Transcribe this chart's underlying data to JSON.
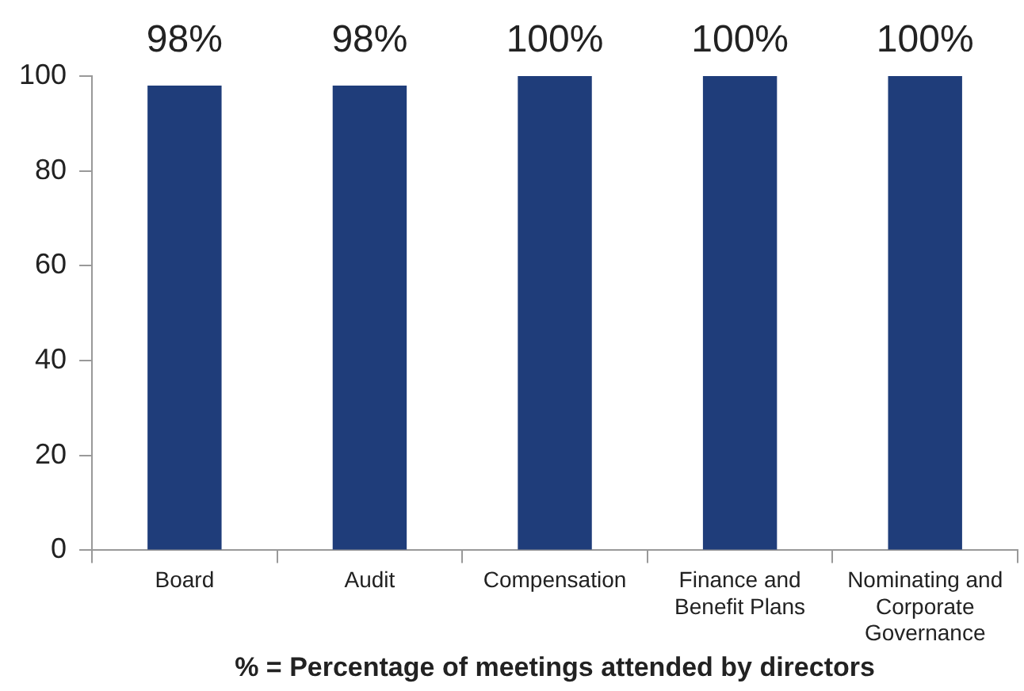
{
  "chart_data": {
    "type": "bar",
    "xlabel": "% = Percentage of meetings attended by directors",
    "categories": [
      "Board",
      "Audit",
      "Compensation",
      "Finance and Benefit Plans",
      "Nominating and Corporate Governance"
    ],
    "values": [
      98,
      98,
      100,
      100,
      100
    ],
    "value_labels": [
      "98%",
      "98%",
      "100%",
      "100%",
      "100%"
    ],
    "color": "#1f3d7a",
    "ylim": [
      0,
      100
    ],
    "yticks": [
      0,
      20,
      40,
      60,
      80,
      100
    ],
    "grid": false,
    "legend": false
  }
}
